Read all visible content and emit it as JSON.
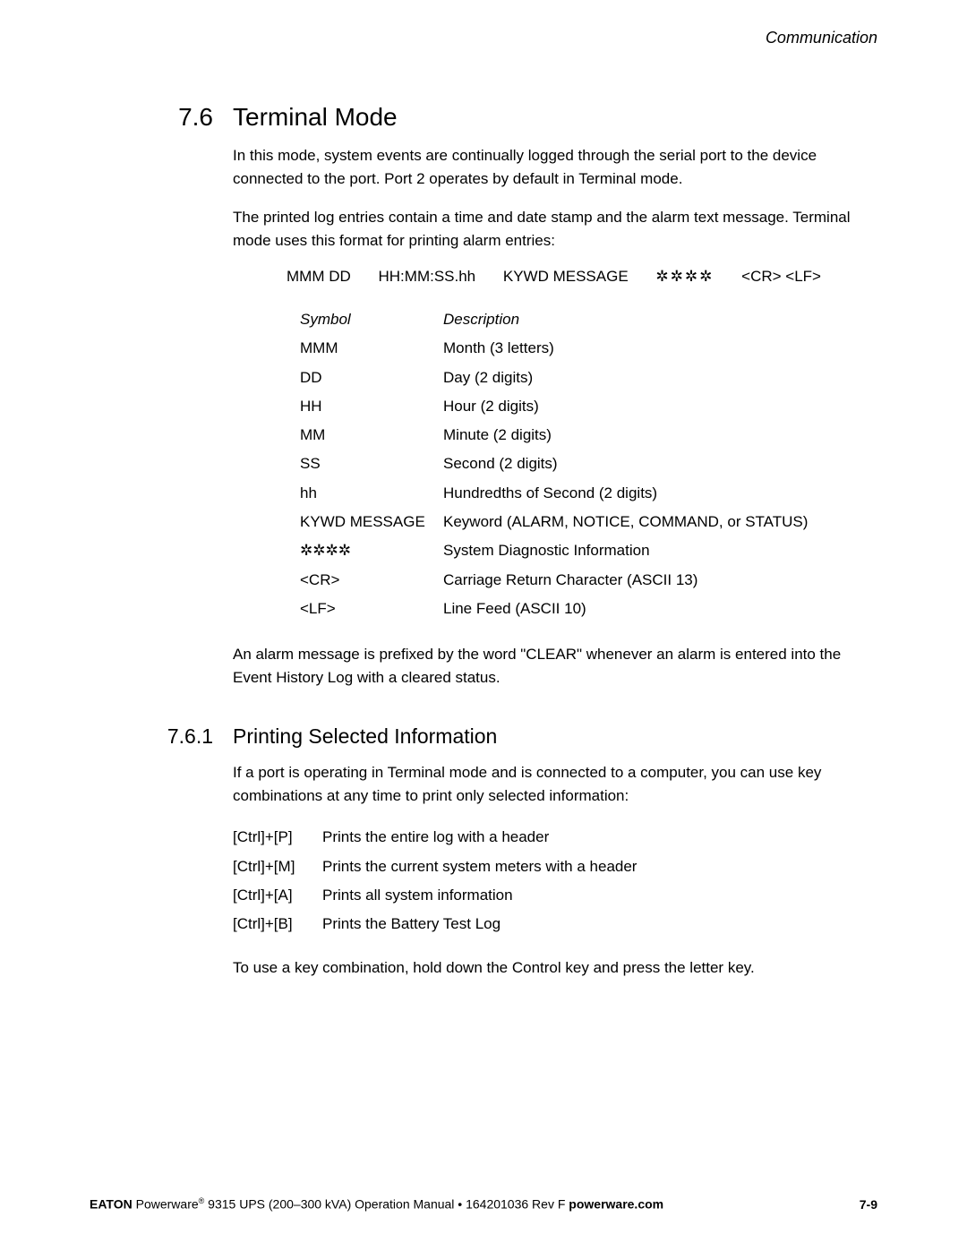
{
  "header": {
    "label": "Communication"
  },
  "section": {
    "number": "7.6",
    "title": "Terminal Mode",
    "para1": "In this mode, system events are continually logged through the serial port to the device connected to the port. Port 2 operates by default in Terminal mode.",
    "para2": "The printed log entries contain a time and date stamp and the alarm text message. Terminal mode uses this format for printing alarm entries:",
    "format": {
      "c1": "MMM DD",
      "c2": "HH:MM:SS.hh",
      "c3": "KYWD MESSAGE",
      "c4": "✲✲✲✲",
      "c5": "<CR> <LF>"
    },
    "symbol_table": {
      "header": {
        "col1": "Symbol",
        "col2": "Description"
      },
      "rows": [
        {
          "sym": "MMM",
          "desc": "Month (3 letters)"
        },
        {
          "sym": "DD",
          "desc": "Day (2 digits)"
        },
        {
          "sym": "HH",
          "desc": "Hour (2 digits)"
        },
        {
          "sym": "MM",
          "desc": "Minute (2 digits)"
        },
        {
          "sym": "SS",
          "desc": "Second (2 digits)"
        },
        {
          "sym": "hh",
          "desc": "Hundredths of Second (2 digits)"
        },
        {
          "sym": "KYWD MESSAGE",
          "desc": "Keyword (ALARM, NOTICE, COMMAND, or STATUS)"
        },
        {
          "sym": "✲✲✲✲",
          "desc": "System Diagnostic Information"
        },
        {
          "sym": "<CR>",
          "desc": "Carriage Return Character (ASCII 13)"
        },
        {
          "sym": "<LF>",
          "desc": "Line Feed (ASCII 10)"
        }
      ]
    },
    "para3": "An alarm message is prefixed by the word \"CLEAR\" whenever an alarm is entered into the Event History Log with a cleared status."
  },
  "subsection": {
    "number": "7.6.1",
    "title": "Printing Selected Information",
    "para1": "If a port is operating in Terminal mode and is connected to a computer, you can use key combinations at any time to print only selected information:",
    "key_table": {
      "rows": [
        {
          "key": "[Ctrl]+[P]",
          "desc": "Prints the entire log with a header"
        },
        {
          "key": "[Ctrl]+[M]",
          "desc": "Prints the current system meters with a header"
        },
        {
          "key": "[Ctrl]+[A]",
          "desc": "Prints all system information"
        },
        {
          "key": "[Ctrl]+[B]",
          "desc": "Prints the Battery Test Log"
        }
      ]
    },
    "para2": "To use a key combination, hold down the Control key and press the letter key."
  },
  "footer": {
    "brand": "EATON",
    "product": " Powerware",
    "reg": "®",
    "rest": " 9315 UPS (200–300 kVA) Operation Manual  •  164201036 Rev F  ",
    "site": "powerware.com",
    "page": "7-9"
  }
}
